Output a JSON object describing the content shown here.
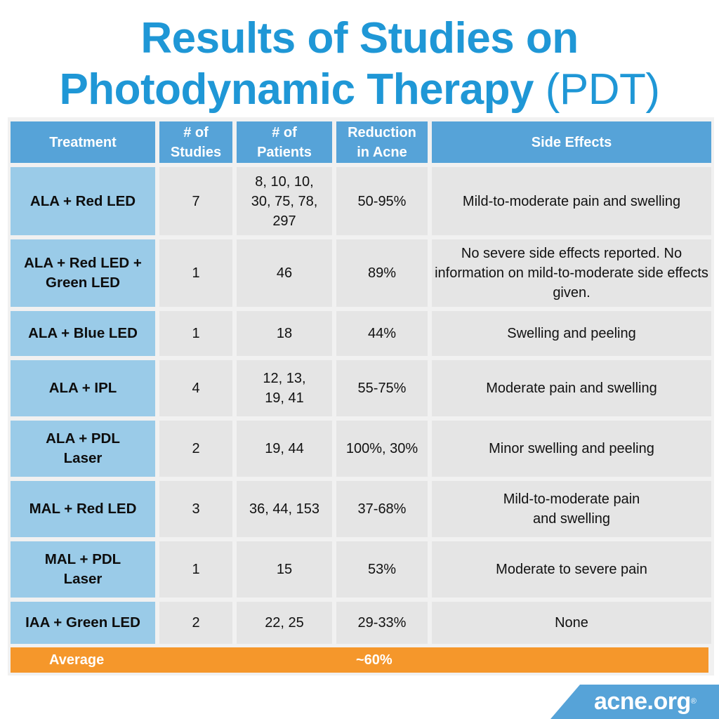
{
  "title": {
    "line1": "Results of Studies on",
    "line2_bold": "Photodynamic Therapy",
    "line2_light": "(PDT)"
  },
  "table": {
    "headers": [
      "Treatment",
      "# of Studies",
      "# of Patients",
      "Reduction in Acne",
      "Side Effects"
    ],
    "rows": [
      {
        "treatment": "ALA + Red LED",
        "studies": "7",
        "patients": "8, 10, 10, 30, 75, 78, 297",
        "reduction": "50-95%",
        "side_effects": "Mild-to-moderate pain and swelling"
      },
      {
        "treatment": "ALA + Red LED + Green LED",
        "studies": "1",
        "patients": "46",
        "reduction": "89%",
        "side_effects": "No severe side effects reported. No information on mild-to-moderate side effects given."
      },
      {
        "treatment": "ALA + Blue LED",
        "studies": "1",
        "patients": "18",
        "reduction": "44%",
        "side_effects": "Swelling and peeling"
      },
      {
        "treatment": "ALA + IPL",
        "studies": "4",
        "patients": "12, 13, 19, 41",
        "reduction": "55-75%",
        "side_effects": "Moderate pain and swelling"
      },
      {
        "treatment": "ALA + PDL Laser",
        "studies": "2",
        "patients": "19, 44",
        "reduction": "100%, 30%",
        "side_effects": "Minor swelling and peeling"
      },
      {
        "treatment": "MAL + Red LED",
        "studies": "3",
        "patients": "36, 44, 153",
        "reduction": "37-68%",
        "side_effects": "Mild-to-moderate pain and swelling"
      },
      {
        "treatment": "MAL + PDL Laser",
        "studies": "1",
        "patients": "15",
        "reduction": "53%",
        "side_effects": "Moderate to severe pain"
      },
      {
        "treatment": "IAA + Green LED",
        "studies": "2",
        "patients": "22, 25",
        "reduction": "29-33%",
        "side_effects": "None"
      }
    ],
    "average": {
      "label": "Average",
      "value": "~60%"
    }
  },
  "logo": {
    "text": "acne.org",
    "mark": "®"
  },
  "colors": {
    "title": "#1f97d6",
    "header": "#56a3d8",
    "treatment_cell": "#9acbe8",
    "body_cell": "#e5e5e5",
    "average_bar": "#f5972b",
    "logo_bg": "#56a3d8"
  }
}
